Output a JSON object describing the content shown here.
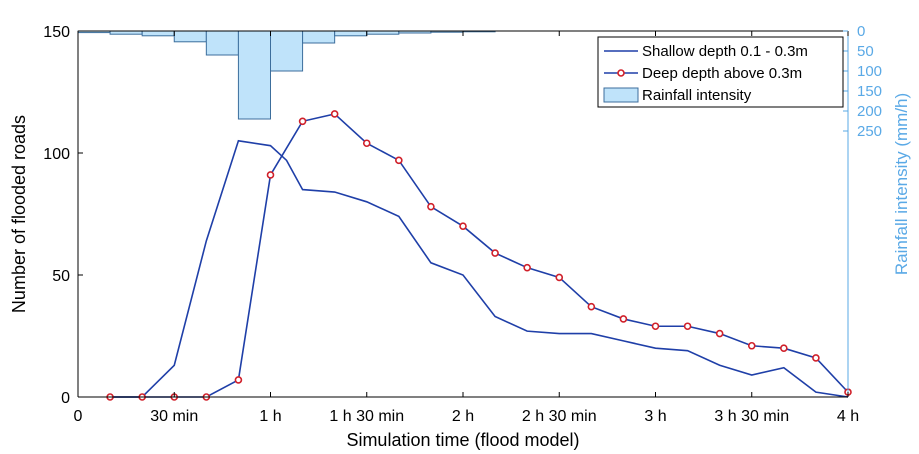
{
  "chart_data": {
    "type": "line",
    "xlabel": "Simulation time (flood model)",
    "ylabel": "Number of flooded roads",
    "y2label": "Rainfall intensity (mm/h)",
    "xlim": [
      0,
      240
    ],
    "ylim": [
      0,
      150
    ],
    "y2lim": [
      0,
      500
    ],
    "y2_reversed": true,
    "x_ticks": [
      0,
      30,
      60,
      90,
      120,
      150,
      180,
      210,
      240
    ],
    "x_tick_labels": [
      "0",
      "30 min",
      "1 h",
      "1 h 30 min",
      "2 h",
      "2 h 30 min",
      "3 h",
      "3 h 30 min",
      "4 h"
    ],
    "y_ticks": [
      0,
      50,
      100,
      150
    ],
    "y_tick_labels": [
      "0",
      "50",
      "100",
      "150"
    ],
    "y2_ticks": [
      0,
      50,
      100,
      150,
      200,
      250
    ],
    "y2_tick_labels": [
      "0",
      "50",
      "100",
      "150",
      "200",
      "250"
    ],
    "legend_position": "top-right",
    "series": [
      {
        "name": "Shallow depth 0.1 - 0.3m",
        "color": "#1f3fa8",
        "x": [
          10,
          20,
          30,
          40,
          50,
          60,
          65,
          70,
          80,
          90,
          100,
          110,
          120,
          130,
          140,
          150,
          160,
          170,
          180,
          190,
          200,
          210,
          220,
          230,
          240
        ],
        "y": [
          0,
          0,
          13,
          64,
          105,
          103,
          97,
          85,
          84,
          80,
          74,
          55,
          50,
          33,
          27,
          26,
          26,
          23,
          20,
          19,
          13,
          9,
          12,
          2,
          0
        ]
      },
      {
        "name": "Deep depth above 0.3m",
        "color": "#1f3fa8",
        "marker_color": "#d0202a",
        "x": [
          10,
          20,
          30,
          40,
          50,
          60,
          70,
          80,
          90,
          100,
          110,
          120,
          130,
          140,
          150,
          160,
          170,
          180,
          190,
          200,
          210,
          220,
          230,
          240
        ],
        "y": [
          0,
          0,
          0,
          0,
          7,
          91,
          113,
          116,
          104,
          97,
          78,
          70,
          59,
          53,
          49,
          37,
          32,
          29,
          29,
          26,
          21,
          20,
          16,
          2
        ]
      },
      {
        "name": "Rainfall intensity",
        "type": "bar",
        "fill": "#bfe3fa",
        "stroke": "#3c6e9c",
        "bins": [
          [
            0,
            10
          ],
          [
            10,
            20
          ],
          [
            20,
            30
          ],
          [
            30,
            40
          ],
          [
            40,
            50
          ],
          [
            50,
            60
          ],
          [
            60,
            70
          ],
          [
            70,
            80
          ],
          [
            80,
            90
          ],
          [
            90,
            100
          ],
          [
            100,
            110
          ],
          [
            110,
            120
          ],
          [
            120,
            130
          ]
        ],
        "values": [
          4,
          8,
          12,
          27,
          60,
          220,
          100,
          30,
          12,
          8,
          5,
          3,
          2
        ]
      }
    ]
  }
}
